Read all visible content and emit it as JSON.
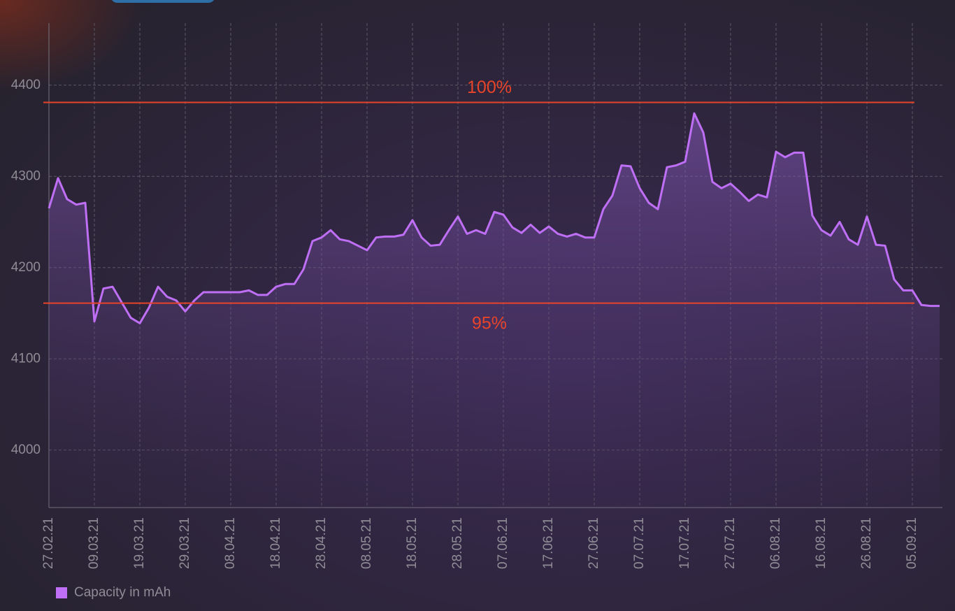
{
  "chart_data": {
    "type": "line",
    "categories": [
      "27.02.21",
      null,
      null,
      null,
      null,
      "09.03.21",
      null,
      null,
      null,
      null,
      "19.03.21",
      null,
      null,
      null,
      null,
      "29.03.21",
      null,
      null,
      null,
      null,
      "08.04.21",
      null,
      null,
      null,
      null,
      "18.04.21",
      null,
      null,
      null,
      null,
      "28.04.21",
      null,
      null,
      null,
      null,
      "08.05.21",
      null,
      null,
      null,
      null,
      "18.05.21",
      null,
      null,
      null,
      null,
      "28.05.21",
      null,
      null,
      null,
      null,
      "07.06.21",
      null,
      null,
      null,
      null,
      "17.06.21",
      null,
      null,
      null,
      null,
      "27.06.21",
      null,
      null,
      null,
      null,
      "07.07.21",
      null,
      null,
      null,
      null,
      "17.07.21",
      null,
      null,
      null,
      null,
      "27.07.21",
      null,
      null,
      null,
      null,
      "06.08.21",
      null,
      null,
      null,
      null,
      "16.08.21",
      null,
      null,
      null,
      null,
      "26.08.21",
      null,
      null,
      null,
      null,
      "05.09.21",
      null,
      null,
      null
    ],
    "series": [
      {
        "name": "Capacity in mAh",
        "color": "#bf6ff5",
        "values": [
          4265,
          4298,
          4275,
          4269,
          4271,
          4141,
          4177,
          4179,
          4162,
          4145,
          4139,
          4156,
          4179,
          4168,
          4164,
          4152,
          4164,
          4173,
          4173,
          4173,
          4173,
          4173,
          4175,
          4170,
          4170,
          4179,
          4182,
          4182,
          4198,
          4229,
          4233,
          4241,
          4231,
          4229,
          4224,
          4219,
          4233,
          4234,
          4234,
          4236,
          4252,
          4233,
          4224,
          4225,
          4241,
          4256,
          4237,
          4241,
          4237,
          4261,
          4258,
          4244,
          4238,
          4247,
          4238,
          4245,
          4237,
          4234,
          4237,
          4233,
          4233,
          4264,
          4279,
          4312,
          4311,
          4287,
          4271,
          4264,
          4310,
          4312,
          4316,
          4369,
          4348,
          4294,
          4287,
          4292,
          4283,
          4273,
          4280,
          4277,
          4327,
          4321,
          4326,
          4326,
          4257,
          4241,
          4235,
          4250,
          4231,
          4225,
          4256,
          4225,
          4224,
          4187,
          4175,
          4175,
          4159,
          4158,
          4158
        ]
      }
    ],
    "ylim": [
      3937,
      4468
    ],
    "yticks": [
      4000,
      4100,
      4200,
      4300,
      4400
    ],
    "grid": true,
    "reference_lines": [
      {
        "value": 4381,
        "label": "100%",
        "color": "#e8442a"
      },
      {
        "value": 4161,
        "label": "95%",
        "color": "#e8442a"
      }
    ],
    "legend": "bottom-left"
  }
}
